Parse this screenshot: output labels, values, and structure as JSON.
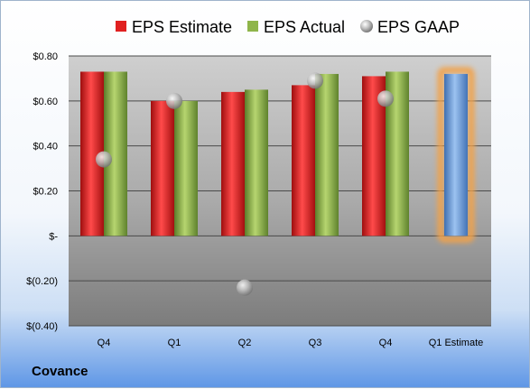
{
  "chart_data": {
    "type": "bar",
    "categories": [
      "Q4",
      "Q1",
      "Q2",
      "Q3",
      "Q4",
      "Q1 Estimate"
    ],
    "series": [
      {
        "name": "EPS Estimate",
        "values": [
          0.73,
          0.6,
          0.64,
          0.67,
          0.71,
          null
        ],
        "color": "#e02020"
      },
      {
        "name": "EPS Actual",
        "values": [
          0.73,
          0.6,
          0.65,
          0.72,
          0.73,
          null
        ],
        "color": "#8fb54a"
      },
      {
        "name": "EPS GAAP",
        "values": [
          0.34,
          0.6,
          -0.23,
          0.69,
          0.61,
          null
        ],
        "color": "#b0b0b0",
        "marker": "sphere"
      },
      {
        "name": "Q1 Estimate",
        "values": [
          null,
          null,
          null,
          null,
          null,
          0.72
        ],
        "color": "#6fa0dc",
        "highlight": "#f2a24a"
      }
    ],
    "ylim": [
      -0.4,
      0.8
    ],
    "y_ticks": [
      {
        "value": 0.8,
        "label": "$0.80"
      },
      {
        "value": 0.6,
        "label": "$0.60"
      },
      {
        "value": 0.4,
        "label": "$0.40"
      },
      {
        "value": 0.2,
        "label": "$0.20"
      },
      {
        "value": 0.0,
        "label": "$-"
      },
      {
        "value": -0.2,
        "label": "$(0.20)"
      },
      {
        "value": -0.4,
        "label": "$(0.40)"
      }
    ],
    "grid": true,
    "legend_position": "top",
    "legend": [
      {
        "label": "EPS Estimate",
        "color": "#e02020",
        "shape": "square"
      },
      {
        "label": "EPS Actual",
        "color": "#8fb54a",
        "shape": "square"
      },
      {
        "label": "EPS GAAP",
        "color": "#b0b0b0",
        "shape": "sphere"
      }
    ]
  },
  "company": "Covance"
}
